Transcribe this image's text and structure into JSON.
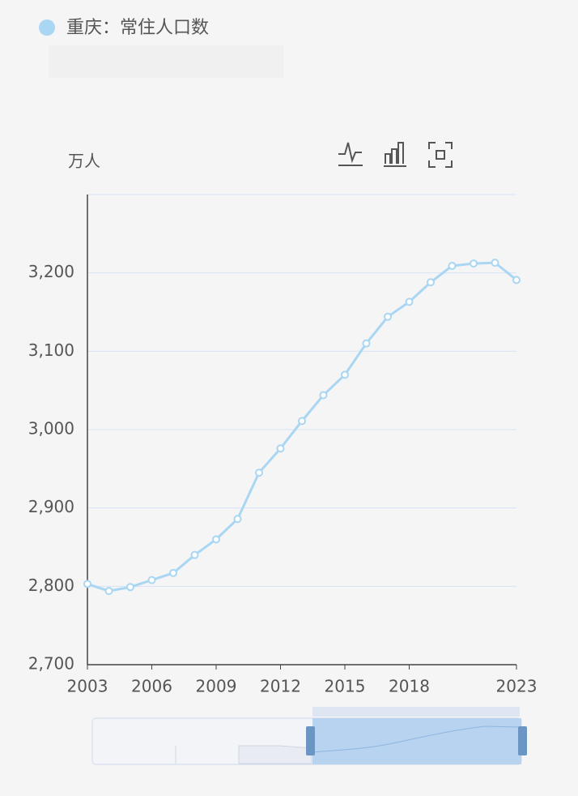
{
  "chart_data": {
    "type": "line",
    "title": "重庆：常住人口数",
    "y_label": "万人",
    "x": [
      2003,
      2004,
      2005,
      2006,
      2007,
      2008,
      2009,
      2010,
      2011,
      2012,
      2013,
      2014,
      2015,
      2016,
      2017,
      2018,
      2019,
      2020,
      2021,
      2022,
      2023
    ],
    "series": [
      {
        "name": "重庆：常住人口数",
        "color": "#a9d6f2",
        "values": [
          2803,
          2794,
          2799,
          2808,
          2817,
          2840,
          2860,
          2886,
          2945,
          2976,
          3011,
          3044,
          3070,
          3110,
          3144,
          3163,
          3188,
          3209,
          3212,
          3213,
          3191
        ]
      }
    ],
    "xlim": [
      2003,
      2023
    ],
    "xticks": [
      2003,
      2006,
      2009,
      2012,
      2015,
      2018,
      2023
    ],
    "ylim": [
      2700,
      3300
    ],
    "yticks": [
      {
        "value": 2700,
        "label": "2,700"
      },
      {
        "value": 2800,
        "label": "2,800"
      },
      {
        "value": 2900,
        "label": "2,900"
      },
      {
        "value": 3000,
        "label": "3,000"
      },
      {
        "value": 3100,
        "label": "3,100"
      },
      {
        "value": 3200,
        "label": "3,200"
      }
    ],
    "grid": true
  }
}
